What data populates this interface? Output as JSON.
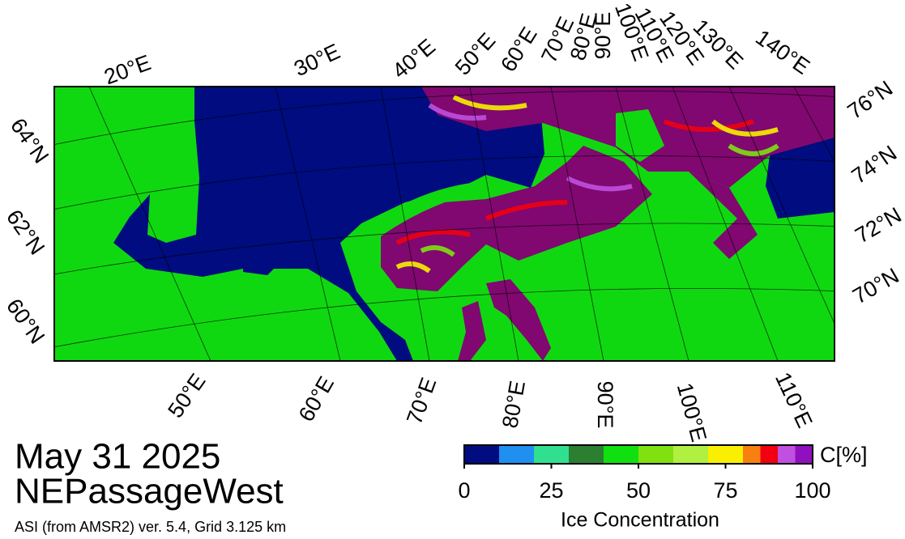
{
  "date": "May 31 2025",
  "region": "NEPassageWest",
  "source": "ASI (from AMSR2) ver. 5.4,  Grid 3.125 km",
  "map": {
    "top_labels": [
      "20°E",
      "30°E",
      "40°E",
      "50°E",
      "60°E",
      "70°E",
      "80°E",
      "90°E",
      "100°E",
      "110°E",
      "120°E",
      "130°E",
      "140°E"
    ],
    "right_labels": [
      "76°N",
      "74°N",
      "72°N",
      "70°N"
    ],
    "left_labels": [
      "64°N",
      "62°N",
      "60°N"
    ],
    "bottom_labels": [
      "50°E",
      "60°E",
      "70°E",
      "80°E",
      "90°E",
      "100°E",
      "110°E"
    ]
  },
  "colorbar": {
    "unit": "C[%]",
    "label": "Ice Concentration",
    "lim": [
      0,
      100
    ],
    "ticks": [
      0,
      25,
      50,
      75,
      100
    ],
    "bins": [
      0,
      10,
      20,
      30,
      40,
      50,
      60,
      70,
      80,
      85,
      90,
      95,
      100
    ],
    "colors": [
      "#000c80",
      "#1f8ff0",
      "#30e090",
      "#2a8030",
      "#10e010",
      "#80e010",
      "#b0f040",
      "#f8f000",
      "#f88010",
      "#f00010",
      "#c050e0",
      "#9010c0"
    ]
  }
}
